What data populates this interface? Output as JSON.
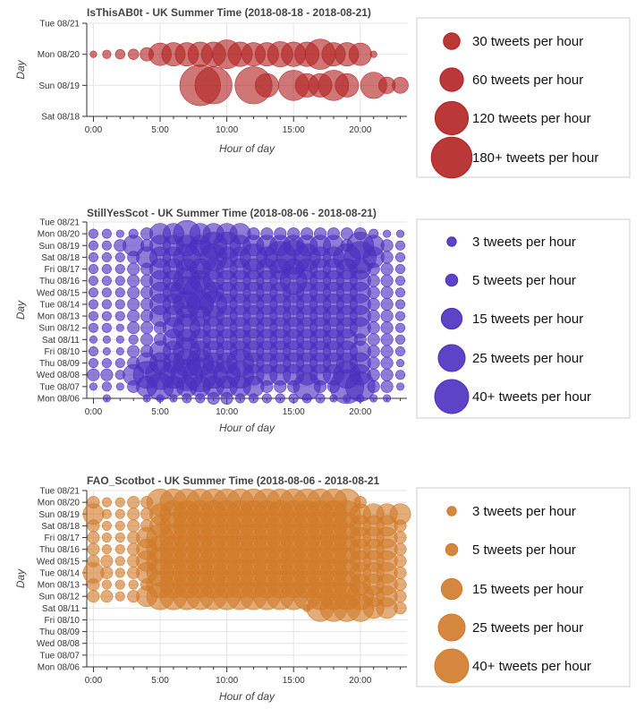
{
  "chart_data": [
    {
      "type": "scatter",
      "title": "IsThisAB0t - UK Summer Time (2018-08-18 - 2018-08-21)",
      "xlabel": "Hour of day",
      "ylabel": "Day",
      "color": "#b22222",
      "xlim": [
        -0.5,
        23.5
      ],
      "x_ticks": [
        "0:00",
        "5:00",
        "10:00",
        "15:00",
        "20:00"
      ],
      "y_ticks": [
        "Sat 08/18",
        "Sun 08/19",
        "Mon 08/20",
        "Tue 08/21"
      ],
      "size_legend": [
        {
          "label": "30 tweets per hour",
          "value": 30
        },
        {
          "label": "60 tweets per hour",
          "value": 60
        },
        {
          "label": "120 tweets per hour",
          "value": 120
        },
        {
          "label": "180+ tweets per hour",
          "value": 180
        }
      ],
      "points": [
        {
          "day": "Mon 08/20",
          "hour": 0,
          "tweets": 5
        },
        {
          "day": "Mon 08/20",
          "hour": 1,
          "tweets": 8
        },
        {
          "day": "Mon 08/20",
          "hour": 2,
          "tweets": 10
        },
        {
          "day": "Mon 08/20",
          "hour": 3,
          "tweets": 12
        },
        {
          "day": "Mon 08/20",
          "hour": 4,
          "tweets": 20
        },
        {
          "day": "Mon 08/20",
          "hour": 5,
          "tweets": 55
        },
        {
          "day": "Mon 08/20",
          "hour": 6,
          "tweets": 60
        },
        {
          "day": "Mon 08/20",
          "hour": 7,
          "tweets": 60
        },
        {
          "day": "Mon 08/20",
          "hour": 8,
          "tweets": 65
        },
        {
          "day": "Mon 08/20",
          "hour": 9,
          "tweets": 65
        },
        {
          "day": "Mon 08/20",
          "hour": 10,
          "tweets": 90
        },
        {
          "day": "Mon 08/20",
          "hour": 11,
          "tweets": 65
        },
        {
          "day": "Mon 08/20",
          "hour": 12,
          "tweets": 60
        },
        {
          "day": "Mon 08/20",
          "hour": 13,
          "tweets": 60
        },
        {
          "day": "Mon 08/20",
          "hour": 14,
          "tweets": 70
        },
        {
          "day": "Mon 08/20",
          "hour": 15,
          "tweets": 65
        },
        {
          "day": "Mon 08/20",
          "hour": 16,
          "tweets": 65
        },
        {
          "day": "Mon 08/20",
          "hour": 17,
          "tweets": 100
        },
        {
          "day": "Mon 08/20",
          "hour": 18,
          "tweets": 60
        },
        {
          "day": "Mon 08/20",
          "hour": 19,
          "tweets": 60
        },
        {
          "day": "Mon 08/20",
          "hour": 20,
          "tweets": 55
        },
        {
          "day": "Mon 08/20",
          "hour": 21,
          "tweets": 5
        },
        {
          "day": "Sun 08/19",
          "hour": 8,
          "tweets": 180
        },
        {
          "day": "Sun 08/19",
          "hour": 9,
          "tweets": 150
        },
        {
          "day": "Sun 08/19",
          "hour": 12,
          "tweets": 150
        },
        {
          "day": "Sun 08/19",
          "hour": 13,
          "tweets": 60
        },
        {
          "day": "Sun 08/19",
          "hour": 15,
          "tweets": 100
        },
        {
          "day": "Sun 08/19",
          "hour": 16,
          "tweets": 60
        },
        {
          "day": "Sun 08/19",
          "hour": 17,
          "tweets": 60
        },
        {
          "day": "Sun 08/19",
          "hour": 18,
          "tweets": 100
        },
        {
          "day": "Sun 08/19",
          "hour": 19,
          "tweets": 60
        },
        {
          "day": "Sun 08/19",
          "hour": 21,
          "tweets": 75
        },
        {
          "day": "Sun 08/19",
          "hour": 22,
          "tweets": 30
        },
        {
          "day": "Sun 08/19",
          "hour": 23,
          "tweets": 28
        }
      ]
    },
    {
      "type": "scatter",
      "title": "StillYesScot - UK Summer Time (2018-08-06 - 2018-08-21)",
      "xlabel": "Hour of day",
      "ylabel": "Day",
      "color": "#4b2fbf",
      "xlim": [
        -0.5,
        23.5
      ],
      "x_ticks": [
        "0:00",
        "5:00",
        "10:00",
        "15:00",
        "20:00"
      ],
      "y_ticks": [
        "Mon 08/06",
        "Tue 08/07",
        "Wed 08/08",
        "Thu 08/09",
        "Fri 08/10",
        "Sat 08/11",
        "Sun 08/12",
        "Mon 08/13",
        "Tue 08/14",
        "Wed 08/15",
        "Thu 08/16",
        "Fri 08/17",
        "Sat 08/18",
        "Sun 08/19",
        "Mon 08/20",
        "Tue 08/21"
      ],
      "size_legend": [
        {
          "label": "3 tweets per hour",
          "value": 3
        },
        {
          "label": "5 tweets per hour",
          "value": 5
        },
        {
          "label": "15 tweets per hour",
          "value": 15
        },
        {
          "label": "25 tweets per hour",
          "value": 25
        },
        {
          "label": "40+ tweets per hour",
          "value": 40
        }
      ],
      "hours": [
        0,
        1,
        2,
        3,
        4,
        5,
        6,
        7,
        8,
        9,
        10,
        11,
        12,
        13,
        14,
        15,
        16,
        17,
        18,
        19,
        20,
        21,
        22,
        23
      ],
      "counts": {
        "Mon 08/06": [
          0,
          2,
          0,
          0,
          2,
          2,
          2,
          3,
          3,
          5,
          5,
          3,
          3,
          3,
          3,
          3,
          3,
          3,
          2,
          2,
          2,
          2,
          2,
          0
        ],
        "Tue 08/07": [
          2,
          3,
          2,
          5,
          15,
          25,
          15,
          15,
          15,
          15,
          15,
          15,
          15,
          5,
          5,
          5,
          25,
          5,
          5,
          40,
          30,
          5,
          5,
          2
        ],
        "Wed 08/08": [
          5,
          5,
          3,
          15,
          25,
          30,
          25,
          35,
          40,
          25,
          25,
          25,
          15,
          15,
          15,
          15,
          15,
          15,
          15,
          25,
          15,
          5,
          5,
          3
        ],
        "Thu 08/09": [
          3,
          3,
          3,
          5,
          15,
          15,
          15,
          25,
          25,
          15,
          15,
          25,
          15,
          15,
          15,
          15,
          15,
          15,
          15,
          15,
          15,
          5,
          5,
          2
        ],
        "Fri 08/10": [
          3,
          2,
          2,
          5,
          5,
          15,
          15,
          25,
          15,
          15,
          15,
          15,
          15,
          15,
          15,
          15,
          15,
          15,
          15,
          15,
          15,
          5,
          5,
          3
        ],
        "Sat 08/11": [
          2,
          2,
          2,
          3,
          5,
          5,
          15,
          15,
          15,
          15,
          15,
          15,
          15,
          15,
          15,
          15,
          15,
          15,
          15,
          15,
          5,
          5,
          5,
          3
        ],
        "Sun 08/12": [
          3,
          3,
          2,
          5,
          5,
          5,
          15,
          25,
          15,
          15,
          15,
          15,
          15,
          15,
          15,
          15,
          15,
          15,
          15,
          15,
          15,
          5,
          5,
          3
        ],
        "Mon 08/13": [
          3,
          3,
          3,
          5,
          5,
          15,
          15,
          15,
          15,
          15,
          15,
          15,
          15,
          15,
          15,
          15,
          15,
          15,
          15,
          15,
          15,
          5,
          5,
          3
        ],
        "Tue 08/14": [
          3,
          3,
          3,
          5,
          5,
          15,
          15,
          25,
          25,
          25,
          15,
          15,
          15,
          15,
          15,
          15,
          15,
          15,
          15,
          15,
          15,
          5,
          5,
          3
        ],
        "Wed 08/15": [
          3,
          3,
          3,
          5,
          5,
          15,
          15,
          35,
          40,
          15,
          15,
          15,
          15,
          15,
          15,
          15,
          15,
          15,
          15,
          15,
          15,
          5,
          5,
          3
        ],
        "Thu 08/16": [
          3,
          3,
          3,
          5,
          5,
          15,
          15,
          25,
          15,
          15,
          15,
          15,
          15,
          15,
          15,
          25,
          15,
          15,
          15,
          15,
          15,
          5,
          5,
          3
        ],
        "Fri 08/17": [
          3,
          3,
          3,
          5,
          5,
          15,
          15,
          15,
          15,
          15,
          15,
          15,
          15,
          15,
          15,
          15,
          15,
          15,
          15,
          15,
          15,
          5,
          5,
          3
        ],
        "Sat 08/18": [
          3,
          3,
          3,
          5,
          15,
          15,
          15,
          25,
          40,
          25,
          15,
          15,
          25,
          15,
          35,
          40,
          25,
          15,
          15,
          25,
          35,
          15,
          5,
          3
        ],
        "Sun 08/19": [
          3,
          3,
          5,
          15,
          5,
          15,
          15,
          15,
          15,
          25,
          25,
          15,
          15,
          15,
          15,
          15,
          15,
          15,
          15,
          5,
          25,
          15,
          5,
          3
        ],
        "Mon 08/20": [
          3,
          3,
          2,
          3,
          5,
          15,
          15,
          25,
          15,
          15,
          15,
          15,
          5,
          5,
          5,
          5,
          5,
          5,
          5,
          5,
          5,
          3,
          2,
          2
        ],
        "Tue 08/21": []
      }
    },
    {
      "type": "scatter",
      "title": "FAO_Scotbot - UK Summer Time (2018-08-06 - 2018-08-21",
      "xlabel": "Hour of day",
      "ylabel": "Day",
      "color": "#d07a2a",
      "xlim": [
        -0.5,
        23.5
      ],
      "x_ticks": [
        "0:00",
        "5:00",
        "10:00",
        "15:00",
        "20:00"
      ],
      "y_ticks": [
        "Mon 08/06",
        "Tue 08/07",
        "Wed 08/08",
        "Thu 08/09",
        "Fri 08/10",
        "Sat 08/11",
        "Sun 08/12",
        "Mon 08/13",
        "Tue 08/14",
        "Wed 08/15",
        "Thu 08/16",
        "Fri 08/17",
        "Sat 08/18",
        "Sun 08/19",
        "Mon 08/20",
        "Tue 08/21"
      ],
      "size_legend": [
        {
          "label": "3 tweets per hour",
          "value": 3
        },
        {
          "label": "5 tweets per hour",
          "value": 5
        },
        {
          "label": "15 tweets per hour",
          "value": 15
        },
        {
          "label": "25 tweets per hour",
          "value": 25
        },
        {
          "label": "40+ tweets per hour",
          "value": 40
        }
      ],
      "hours": [
        0,
        1,
        2,
        3,
        4,
        5,
        6,
        7,
        8,
        9,
        10,
        11,
        12,
        13,
        14,
        15,
        16,
        17,
        18,
        19,
        20,
        21,
        22,
        23
      ],
      "counts": {
        "Mon 08/06": [],
        "Tue 08/07": [],
        "Wed 08/08": [],
        "Thu 08/09": [],
        "Fri 08/10": [],
        "Sat 08/11": [
          0,
          0,
          0,
          0,
          0,
          0,
          0,
          0,
          0,
          0,
          0,
          0,
          0,
          0,
          0,
          0,
          2,
          25,
          25,
          25,
          25,
          15,
          15,
          5
        ],
        "Sun 08/12": [
          5,
          5,
          3,
          5,
          15,
          25,
          25,
          25,
          25,
          25,
          25,
          25,
          25,
          25,
          25,
          25,
          25,
          25,
          25,
          25,
          25,
          15,
          15,
          5
        ],
        "Mon 08/13": [
          5,
          3,
          3,
          3,
          5,
          25,
          25,
          25,
          25,
          25,
          25,
          25,
          25,
          25,
          25,
          25,
          25,
          25,
          25,
          25,
          15,
          15,
          15,
          5
        ],
        "Tue 08/14": [
          15,
          5,
          3,
          5,
          15,
          25,
          25,
          25,
          25,
          25,
          25,
          25,
          25,
          25,
          25,
          25,
          25,
          25,
          25,
          25,
          15,
          15,
          15,
          5
        ],
        "Wed 08/15": [
          5,
          5,
          3,
          5,
          15,
          25,
          25,
          25,
          25,
          25,
          25,
          25,
          25,
          25,
          25,
          25,
          25,
          25,
          25,
          25,
          15,
          15,
          15,
          5
        ],
        "Thu 08/16": [
          5,
          3,
          3,
          5,
          15,
          25,
          25,
          25,
          25,
          25,
          25,
          25,
          25,
          25,
          25,
          25,
          25,
          25,
          25,
          25,
          15,
          15,
          15,
          5
        ],
        "Fri 08/17": [
          5,
          3,
          3,
          5,
          15,
          25,
          25,
          25,
          25,
          25,
          25,
          25,
          25,
          25,
          25,
          25,
          25,
          25,
          25,
          25,
          15,
          15,
          15,
          5
        ],
        "Sat 08/18": [
          5,
          3,
          3,
          5,
          5,
          15,
          25,
          25,
          25,
          25,
          25,
          25,
          25,
          25,
          25,
          25,
          25,
          25,
          25,
          25,
          15,
          15,
          15,
          5
        ],
        "Sun 08/19": [
          15,
          3,
          3,
          5,
          5,
          15,
          25,
          25,
          25,
          25,
          25,
          25,
          25,
          25,
          25,
          25,
          25,
          25,
          25,
          25,
          15,
          15,
          15,
          15
        ],
        "Mon 08/20": [
          5,
          3,
          3,
          5,
          5,
          25,
          25,
          25,
          25,
          25,
          25,
          25,
          25,
          25,
          25,
          25,
          25,
          25,
          25,
          25,
          5,
          0,
          0,
          0
        ],
        "Tue 08/21": []
      }
    }
  ]
}
